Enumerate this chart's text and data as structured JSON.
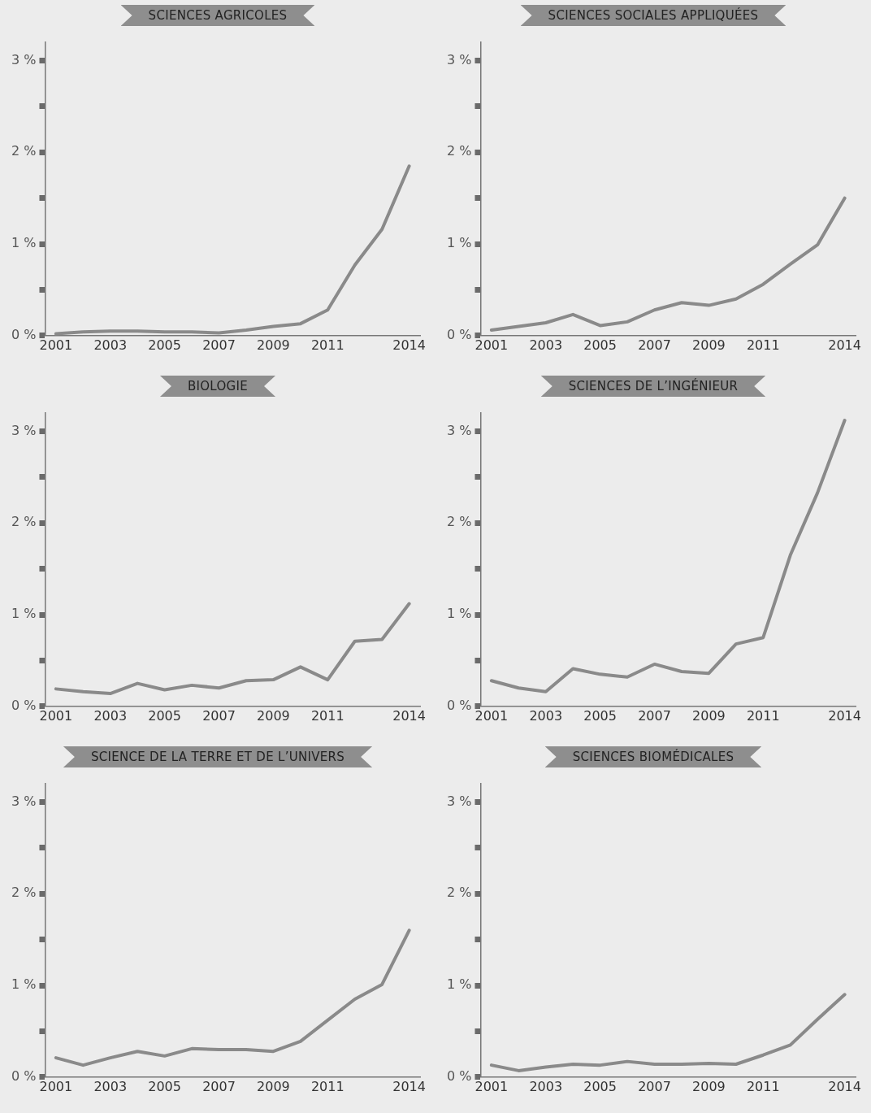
{
  "chart_data": [
    {
      "type": "line",
      "title": "SCIENCES AGRICOLES",
      "x": [
        2001,
        2002,
        2003,
        2004,
        2005,
        2006,
        2007,
        2008,
        2009,
        2010,
        2011,
        2012,
        2013,
        2014
      ],
      "values": [
        0.02,
        0.04,
        0.05,
        0.05,
        0.04,
        0.04,
        0.03,
        0.06,
        0.1,
        0.13,
        0.28,
        0.77,
        1.16,
        1.85
      ],
      "color": "#8a8a8a",
      "xlim": [
        2000.6,
        2014.4
      ],
      "xticks": [
        2001,
        2003,
        2005,
        2007,
        2009,
        2011,
        2014
      ],
      "ylim": [
        0,
        3.2
      ],
      "yticks": [
        {
          "value": 0,
          "label": "0 %"
        },
        {
          "value": 0.5,
          "label": null
        },
        {
          "value": 1,
          "label": "1 %"
        },
        {
          "value": 1.5,
          "label": null
        },
        {
          "value": 2,
          "label": "2 %"
        },
        {
          "value": 2.5,
          "label": null
        },
        {
          "value": 3,
          "label": "3 %"
        }
      ],
      "marker": "none",
      "line_style": "solid"
    },
    {
      "type": "line",
      "title": "SCIENCES SOCIALES APPLIQUÉES",
      "x": [
        2001,
        2002,
        2003,
        2004,
        2005,
        2006,
        2007,
        2008,
        2009,
        2010,
        2011,
        2012,
        2013,
        2014
      ],
      "values": [
        0.06,
        0.1,
        0.14,
        0.23,
        0.11,
        0.15,
        0.28,
        0.36,
        0.33,
        0.4,
        0.56,
        0.78,
        0.99,
        1.5
      ],
      "color": "#8a8a8a",
      "xlim": [
        2000.6,
        2014.4
      ],
      "xticks": [
        2001,
        2003,
        2005,
        2007,
        2009,
        2011,
        2014
      ],
      "ylim": [
        0,
        3.2
      ],
      "yticks": [
        {
          "value": 0,
          "label": "0 %"
        },
        {
          "value": 0.5,
          "label": null
        },
        {
          "value": 1,
          "label": "1 %"
        },
        {
          "value": 1.5,
          "label": null
        },
        {
          "value": 2,
          "label": "2 %"
        },
        {
          "value": 2.5,
          "label": null
        },
        {
          "value": 3,
          "label": "3 %"
        }
      ],
      "marker": "none",
      "line_style": "solid"
    },
    {
      "type": "line",
      "title": "BIOLOGIE",
      "x": [
        2001,
        2002,
        2003,
        2004,
        2005,
        2006,
        2007,
        2008,
        2009,
        2010,
        2011,
        2012,
        2013,
        2014
      ],
      "values": [
        0.19,
        0.16,
        0.14,
        0.25,
        0.18,
        0.23,
        0.2,
        0.28,
        0.29,
        0.43,
        0.29,
        0.71,
        0.73,
        1.12
      ],
      "color": "#8a8a8a",
      "xlim": [
        2000.6,
        2014.4
      ],
      "xticks": [
        2001,
        2003,
        2005,
        2007,
        2009,
        2011,
        2014
      ],
      "ylim": [
        0,
        3.2
      ],
      "yticks": [
        {
          "value": 0,
          "label": "0 %"
        },
        {
          "value": 0.5,
          "label": null
        },
        {
          "value": 1,
          "label": "1 %"
        },
        {
          "value": 1.5,
          "label": null
        },
        {
          "value": 2,
          "label": "2 %"
        },
        {
          "value": 2.5,
          "label": null
        },
        {
          "value": 3,
          "label": "3 %"
        }
      ],
      "marker": "none",
      "line_style": "solid"
    },
    {
      "type": "line",
      "title": "SCIENCES DE L’INGÉNIEUR",
      "x": [
        2001,
        2002,
        2003,
        2004,
        2005,
        2006,
        2007,
        2008,
        2009,
        2010,
        2011,
        2012,
        2013,
        2014
      ],
      "values": [
        0.28,
        0.2,
        0.16,
        0.41,
        0.35,
        0.32,
        0.46,
        0.38,
        0.36,
        0.68,
        0.75,
        1.65,
        2.33,
        3.12
      ],
      "color": "#8a8a8a",
      "xlim": [
        2000.6,
        2014.4
      ],
      "xticks": [
        2001,
        2003,
        2005,
        2007,
        2009,
        2011,
        2014
      ],
      "ylim": [
        0,
        3.2
      ],
      "yticks": [
        {
          "value": 0,
          "label": "0 %"
        },
        {
          "value": 0.5,
          "label": null
        },
        {
          "value": 1,
          "label": "1 %"
        },
        {
          "value": 1.5,
          "label": null
        },
        {
          "value": 2,
          "label": "2 %"
        },
        {
          "value": 2.5,
          "label": null
        },
        {
          "value": 3,
          "label": "3 %"
        }
      ],
      "marker": "none",
      "line_style": "solid"
    },
    {
      "type": "line",
      "title": "SCIENCE DE LA TERRE ET DE L’UNIVERS",
      "x": [
        2001,
        2002,
        2003,
        2004,
        2005,
        2006,
        2007,
        2008,
        2009,
        2010,
        2011,
        2012,
        2013,
        2014
      ],
      "values": [
        0.21,
        0.13,
        0.21,
        0.28,
        0.23,
        0.31,
        0.3,
        0.3,
        0.28,
        0.39,
        0.62,
        0.85,
        1.01,
        1.6
      ],
      "color": "#8a8a8a",
      "xlim": [
        2000.6,
        2014.4
      ],
      "xticks": [
        2001,
        2003,
        2005,
        2007,
        2009,
        2011,
        2014
      ],
      "ylim": [
        0,
        3.2
      ],
      "yticks": [
        {
          "value": 0,
          "label": "0 %"
        },
        {
          "value": 0.5,
          "label": null
        },
        {
          "value": 1,
          "label": "1 %"
        },
        {
          "value": 1.5,
          "label": null
        },
        {
          "value": 2,
          "label": "2 %"
        },
        {
          "value": 2.5,
          "label": null
        },
        {
          "value": 3,
          "label": "3 %"
        }
      ],
      "marker": "none",
      "line_style": "solid"
    },
    {
      "type": "line",
      "title": "SCIENCES BIOMÉDICALES",
      "x": [
        2001,
        2002,
        2003,
        2004,
        2005,
        2006,
        2007,
        2008,
        2009,
        2010,
        2011,
        2012,
        2013,
        2014
      ],
      "values": [
        0.13,
        0.07,
        0.11,
        0.14,
        0.13,
        0.17,
        0.14,
        0.14,
        0.15,
        0.14,
        0.24,
        0.35,
        0.63,
        0.9
      ],
      "color": "#8a8a8a",
      "xlim": [
        2000.6,
        2014.4
      ],
      "xticks": [
        2001,
        2003,
        2005,
        2007,
        2009,
        2011,
        2014
      ],
      "ylim": [
        0,
        3.2
      ],
      "yticks": [
        {
          "value": 0,
          "label": "0 %"
        },
        {
          "value": 0.5,
          "label": null
        },
        {
          "value": 1,
          "label": "1 %"
        },
        {
          "value": 1.5,
          "label": null
        },
        {
          "value": 2,
          "label": "2 %"
        },
        {
          "value": 2.5,
          "label": null
        },
        {
          "value": 3,
          "label": "3 %"
        }
      ],
      "marker": "none",
      "line_style": "solid"
    }
  ]
}
